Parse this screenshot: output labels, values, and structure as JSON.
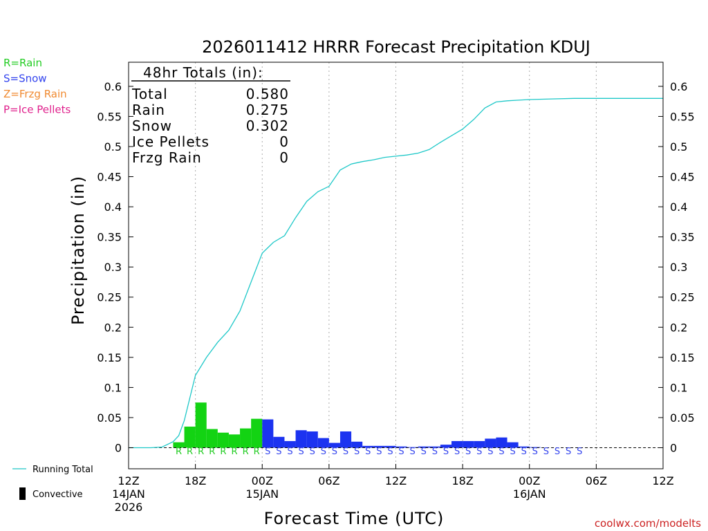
{
  "chart_data": {
    "type": "bar",
    "title": "2026011412 HRRR Forecast Precipitation KDUJ",
    "xlabel": "Forecast Time (UTC)",
    "ylabel": "Precipitation (in)",
    "ylim": [
      -0.035,
      0.64
    ],
    "y_ticks": [
      0,
      0.05,
      0.1,
      0.15,
      0.2,
      0.25,
      0.3,
      0.35,
      0.4,
      0.45,
      0.5,
      0.55,
      0.6
    ],
    "y_tick_labels": [
      "0",
      "0.05",
      "0.1",
      "0.15",
      "0.2",
      "0.25",
      "0.3",
      "0.35",
      "0.4",
      "0.45",
      "0.5",
      "0.55",
      "0.6"
    ],
    "x_range_hours": [
      0,
      48
    ],
    "x_ticks": [
      {
        "hour": 0,
        "label": "12Z",
        "sub1": "14JAN",
        "sub2": "2026"
      },
      {
        "hour": 6,
        "label": "18Z",
        "sub1": "",
        "sub2": ""
      },
      {
        "hour": 12,
        "label": "00Z",
        "sub1": "15JAN",
        "sub2": ""
      },
      {
        "hour": 18,
        "label": "06Z",
        "sub1": "",
        "sub2": ""
      },
      {
        "hour": 24,
        "label": "12Z",
        "sub1": "",
        "sub2": ""
      },
      {
        "hour": 30,
        "label": "18Z",
        "sub1": "",
        "sub2": ""
      },
      {
        "hour": 36,
        "label": "00Z",
        "sub1": "16JAN",
        "sub2": ""
      },
      {
        "hour": 42,
        "label": "06Z",
        "sub1": "",
        "sub2": ""
      },
      {
        "hour": 48,
        "label": "12Z",
        "sub1": "",
        "sub2": ""
      }
    ],
    "grid_hours": [
      6,
      12,
      18,
      24,
      30,
      36,
      42
    ],
    "series": [
      {
        "name": "Hourly Precipitation",
        "bars": [
          {
            "hour": 4,
            "value": 0.009,
            "type": "R"
          },
          {
            "hour": 5,
            "value": 0.035,
            "type": "R"
          },
          {
            "hour": 6,
            "value": 0.075,
            "type": "R"
          },
          {
            "hour": 7,
            "value": 0.031,
            "type": "R"
          },
          {
            "hour": 8,
            "value": 0.025,
            "type": "R"
          },
          {
            "hour": 9,
            "value": 0.022,
            "type": "R"
          },
          {
            "hour": 10,
            "value": 0.032,
            "type": "R"
          },
          {
            "hour": 11,
            "value": 0.048,
            "type": "R"
          },
          {
            "hour": 12,
            "value": 0.047,
            "type": "S"
          },
          {
            "hour": 13,
            "value": 0.018,
            "type": "S"
          },
          {
            "hour": 14,
            "value": 0.011,
            "type": "S"
          },
          {
            "hour": 15,
            "value": 0.029,
            "type": "S"
          },
          {
            "hour": 16,
            "value": 0.027,
            "type": "S"
          },
          {
            "hour": 17,
            "value": 0.016,
            "type": "S"
          },
          {
            "hour": 18,
            "value": 0.008,
            "type": "S"
          },
          {
            "hour": 19,
            "value": 0.027,
            "type": "S"
          },
          {
            "hour": 20,
            "value": 0.01,
            "type": "S"
          },
          {
            "hour": 21,
            "value": 0.003,
            "type": "S"
          },
          {
            "hour": 22,
            "value": 0.003,
            "type": "S"
          },
          {
            "hour": 23,
            "value": 0.003,
            "type": "S"
          },
          {
            "hour": 24,
            "value": 0.002,
            "type": "S"
          },
          {
            "hour": 25,
            "value": 0.001,
            "type": "S"
          },
          {
            "hour": 26,
            "value": 0.002,
            "type": "S"
          },
          {
            "hour": 27,
            "value": 0.002,
            "type": "S"
          },
          {
            "hour": 28,
            "value": 0.005,
            "type": "S"
          },
          {
            "hour": 29,
            "value": 0.011,
            "type": "S"
          },
          {
            "hour": 30,
            "value": 0.011,
            "type": "S"
          },
          {
            "hour": 31,
            "value": 0.011,
            "type": "S"
          },
          {
            "hour": 32,
            "value": 0.015,
            "type": "S"
          },
          {
            "hour": 33,
            "value": 0.017,
            "type": "S"
          },
          {
            "hour": 34,
            "value": 0.009,
            "type": "S"
          },
          {
            "hour": 35,
            "value": 0.002,
            "type": "S"
          },
          {
            "hour": 36,
            "value": 0.001,
            "type": "S"
          }
        ]
      },
      {
        "name": "Running Total",
        "points": [
          [
            0,
            0
          ],
          [
            2,
            0
          ],
          [
            3,
            0.001
          ],
          [
            4,
            0.01
          ],
          [
            4.5,
            0.02
          ],
          [
            5,
            0.045
          ],
          [
            6,
            0.12
          ],
          [
            7,
            0.15
          ],
          [
            8,
            0.175
          ],
          [
            9,
            0.195
          ],
          [
            10,
            0.227
          ],
          [
            11,
            0.275
          ],
          [
            12,
            0.323
          ],
          [
            13,
            0.341
          ],
          [
            14,
            0.352
          ],
          [
            15,
            0.382
          ],
          [
            16,
            0.409
          ],
          [
            17,
            0.425
          ],
          [
            18,
            0.434
          ],
          [
            19,
            0.461
          ],
          [
            20,
            0.471
          ],
          [
            21,
            0.475
          ],
          [
            22,
            0.478
          ],
          [
            23,
            0.482
          ],
          [
            24,
            0.484
          ],
          [
            25,
            0.486
          ],
          [
            26,
            0.489
          ],
          [
            27,
            0.495
          ],
          [
            28,
            0.507
          ],
          [
            29,
            0.518
          ],
          [
            30,
            0.529
          ],
          [
            31,
            0.545
          ],
          [
            32,
            0.564
          ],
          [
            33,
            0.574
          ],
          [
            34,
            0.576
          ],
          [
            35,
            0.577
          ],
          [
            36,
            0.578
          ],
          [
            38,
            0.579
          ],
          [
            40,
            0.58
          ],
          [
            48,
            0.58
          ]
        ]
      }
    ],
    "type_label_start_hour": 4,
    "type_labels": [
      "R",
      "R",
      "R",
      "R",
      "R",
      "R",
      "R",
      "R",
      "S",
      "S",
      "S",
      "S",
      "S",
      "S",
      "S",
      "S",
      "S",
      "S",
      "S",
      "S",
      "S",
      "S",
      "S",
      "S",
      "S",
      "S",
      "S",
      "S",
      "S",
      "S",
      "S",
      "S",
      "S",
      "S",
      "S",
      "S",
      "S"
    ],
    "totals_box": {
      "heading": "48hr Totals (in):",
      "rows": [
        {
          "label": "Total",
          "value": "0.580"
        },
        {
          "label": "Rain",
          "value": "0.275"
        },
        {
          "label": "Snow",
          "value": "0.302"
        },
        {
          "label": "Ice Pellets",
          "value": "0"
        },
        {
          "label": "Frzg Rain",
          "value": "0"
        }
      ]
    },
    "type_legend": [
      {
        "text": "R=Rain",
        "color": "#22cc22"
      },
      {
        "text": "S=Snow",
        "color": "#3344ee"
      },
      {
        "text": "Z=Frzg Rain",
        "color": "#f08a30"
      },
      {
        "text": "P=Ice Pellets",
        "color": "#e0208c"
      }
    ],
    "series_legend": [
      {
        "text": "Running Total",
        "kind": "line"
      },
      {
        "text": "Convective",
        "kind": "block"
      }
    ],
    "credit": "coolwx.com/modelts"
  },
  "colors": {
    "rain": "#13d313",
    "snow": "#1c33f0",
    "running_total": "#1ec8c8",
    "rain_letter": "#22cc22",
    "snow_letter": "#3344ee",
    "axis": "#000000",
    "grid": "#aaaaaa",
    "credit": "#cc2222"
  }
}
